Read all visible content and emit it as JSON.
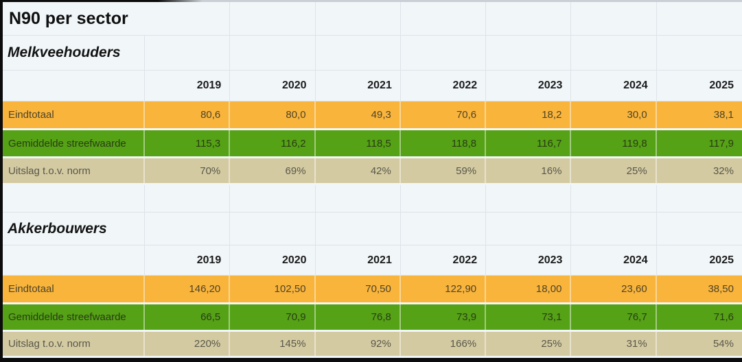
{
  "title": "N90 per sector",
  "years": [
    "2019",
    "2020",
    "2021",
    "2022",
    "2023",
    "2024",
    "2025"
  ],
  "sections": [
    {
      "name": "Melkveehouders",
      "rows": [
        {
          "label": "Eindtotaal",
          "style": "orange",
          "values": [
            "80,6",
            "80,0",
            "49,3",
            "70,6",
            "18,2",
            "30,0",
            "38,1"
          ]
        },
        {
          "label": "Gemiddelde streefwaarde",
          "style": "green",
          "values": [
            "115,3",
            "116,2",
            "118,5",
            "118,8",
            "116,7",
            "119,8",
            "117,9"
          ]
        },
        {
          "label": "Uitslag t.o.v. norm",
          "style": "tan",
          "values": [
            "70%",
            "69%",
            "42%",
            "59%",
            "16%",
            "25%",
            "32%"
          ]
        }
      ]
    },
    {
      "name": "Akkerbouwers",
      "rows": [
        {
          "label": "Eindtotaal",
          "style": "orange",
          "values": [
            "146,20",
            "102,50",
            "70,50",
            "122,90",
            "18,00",
            "23,60",
            "38,50"
          ]
        },
        {
          "label": "Gemiddelde streefwaarde",
          "style": "green",
          "values": [
            "66,5",
            "70,9",
            "76,8",
            "73,9",
            "73,1",
            "76,7",
            "71,6"
          ]
        },
        {
          "label": "Uitslag t.o.v. norm",
          "style": "tan",
          "values": [
            "220%",
            "145%",
            "92%",
            "166%",
            "25%",
            "31%",
            "54%"
          ]
        }
      ]
    }
  ],
  "theme": {
    "row_colors": {
      "eindtotaal": "#f9b43c",
      "gemiddelde_streefwaarde": "#55a216",
      "uitslag_tov_norm": "#d4caa2"
    },
    "background": "#f1f6f9",
    "gridline": "#dde3e8",
    "edge": "#0c0c0c"
  }
}
